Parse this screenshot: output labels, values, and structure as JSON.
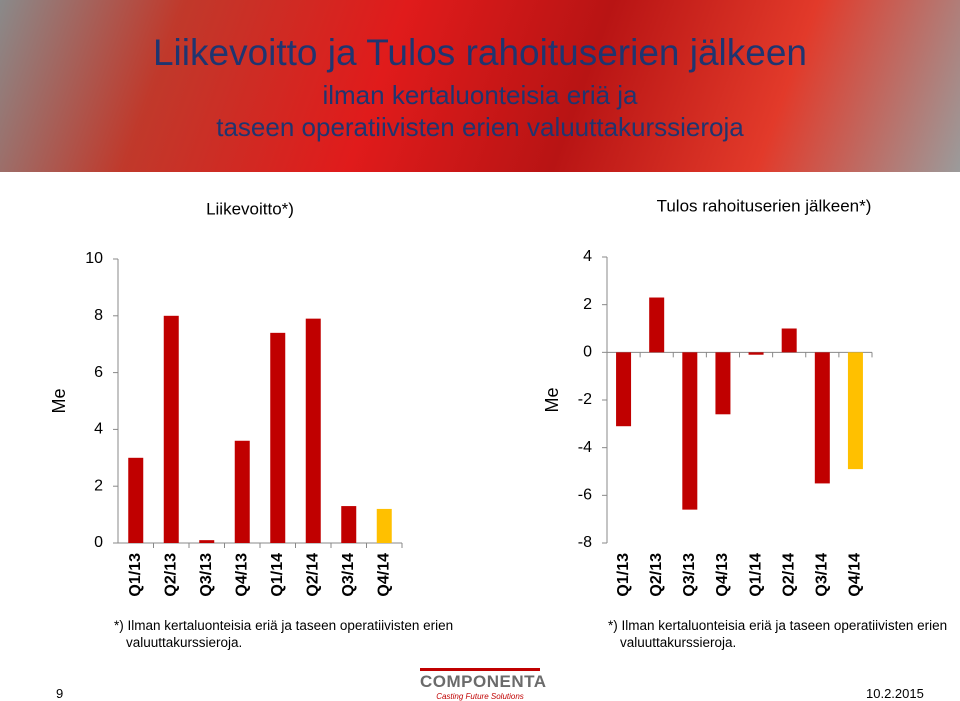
{
  "slide": {
    "title": "Liikevoitto ja Tulos rahoituserien jälkeen",
    "subtitle_1": "ilman kertaluonteisia eriä ja",
    "subtitle_2": "taseen operatiivisten erien valuuttakurssieroja",
    "page_number": "9",
    "date": "10.2.2015",
    "logo": "COMPONENTA",
    "logo_tagline": "Casting Future Solutions"
  },
  "chart_data": [
    {
      "type": "bar",
      "title": "Liikevoitto*)",
      "ylabel": "Me",
      "categories": [
        "Q1/13",
        "Q2/13",
        "Q3/13",
        "Q4/13",
        "Q1/14",
        "Q2/14",
        "Q3/14",
        "Q4/14"
      ],
      "values": [
        3.0,
        8.0,
        0.1,
        3.6,
        7.4,
        7.9,
        1.3,
        1.2
      ],
      "colors": [
        "#c00000",
        "#c00000",
        "#c00000",
        "#c00000",
        "#c00000",
        "#c00000",
        "#c00000",
        "#ffc000"
      ],
      "ylim": [
        0,
        10
      ],
      "yticks": [
        0,
        2,
        4,
        6,
        8,
        10
      ],
      "grid": false,
      "footnote": "*) Ilman kertaluonteisia eriä ja taseen operatiivisten erien valuuttakurssieroja."
    },
    {
      "type": "bar",
      "title": "Tulos rahoituserien jälkeen*)",
      "ylabel": "Me",
      "categories": [
        "Q1/13",
        "Q2/13",
        "Q3/13",
        "Q4/13",
        "Q1/14",
        "Q2/14",
        "Q3/14",
        "Q4/14"
      ],
      "values": [
        -3.1,
        2.3,
        -6.6,
        -2.6,
        -0.1,
        1.0,
        -5.5,
        -4.9
      ],
      "colors": [
        "#c00000",
        "#c00000",
        "#c00000",
        "#c00000",
        "#c00000",
        "#c00000",
        "#c00000",
        "#ffc000"
      ],
      "ylim": [
        -8,
        4
      ],
      "yticks": [
        -8,
        -6,
        -4,
        -2,
        0,
        2,
        4
      ],
      "grid": false,
      "footnote": "*) Ilman kertaluonteisia eriä ja taseen operatiivisten erien valuuttakurssieroja."
    }
  ]
}
